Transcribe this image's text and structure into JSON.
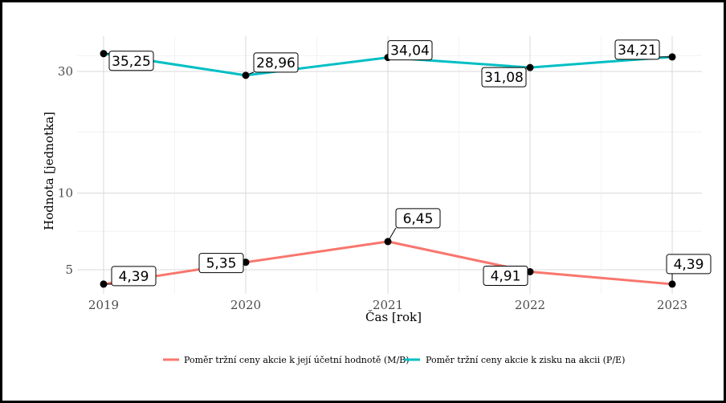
{
  "chart_data": {
    "type": "line",
    "x": [
      "2019",
      "2020",
      "2021",
      "2022",
      "2023"
    ],
    "xlabel": "Čas [rok]",
    "ylabel": "Hodnota [jednotka]",
    "yscale": "log",
    "yticks": [
      5,
      10,
      30
    ],
    "ylim": [
      4.2,
      40
    ],
    "grid": true,
    "legend_position": "bottom",
    "series": [
      {
        "name": "Poměr tržní ceny akcie k její účetní hodnotě (M/B)",
        "color": "#F8766D",
        "values": [
          4.39,
          5.35,
          6.45,
          4.91,
          4.39
        ],
        "labels": [
          "4,39",
          "5,35",
          "6,45",
          "4,91",
          "4,39"
        ]
      },
      {
        "name": "Poměr tržní ceny akcie k zisku na akcii (P/E)",
        "color": "#00BFC4",
        "values": [
          35.25,
          28.96,
          34.04,
          31.08,
          34.21
        ],
        "labels": [
          "35,25",
          "28,96",
          "34,04",
          "31,08",
          "34,21"
        ]
      }
    ]
  }
}
